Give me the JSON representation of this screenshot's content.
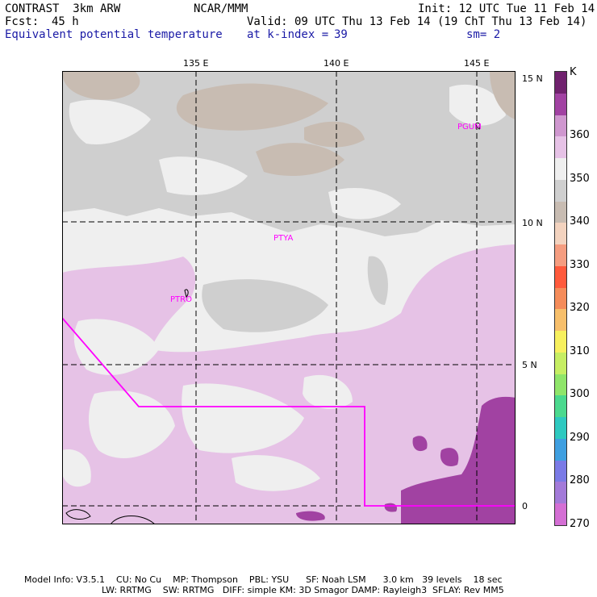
{
  "header": {
    "model": "CONTRAST  3km ARW",
    "org": "NCAR/MMM",
    "init": "Init: 12 UTC Tue 11 Feb 14",
    "fcst_label": "Fcst:",
    "fcst_value": "45 h",
    "valid": "Valid: 09 UTC Thu 13 Feb 14 (19 ChT Thu 13 Feb 14)",
    "field": "Equivalent potential temperature",
    "level": "at k-index =",
    "level_value": "39",
    "smoothing": "sm= 2"
  },
  "map": {
    "lon_labels": [
      "135 E",
      "140 E",
      "145 E"
    ],
    "lat_labels": [
      "15 N",
      "10 N",
      "5 N",
      "0"
    ],
    "stations": [
      "PGUM",
      "PTYA",
      "PTRO"
    ]
  },
  "colorbar": {
    "unit": "K",
    "labels": [
      "360",
      "350",
      "340",
      "330",
      "320",
      "310",
      "300",
      "290",
      "280",
      "270"
    ],
    "colors": [
      "#70226e",
      "#a142a2",
      "#cf97cf",
      "#e6c2e6",
      "#efefef",
      "#cfcfcf",
      "#c8bcb2",
      "#f3d3bf",
      "#f59d80",
      "#ff5a3c",
      "#f58c5a",
      "#f7bf6b",
      "#f7f05e",
      "#c6ee63",
      "#8fe56a",
      "#4bd98e",
      "#2ec9c0",
      "#3f9fe0",
      "#7a7ae6",
      "#a37ad9",
      "#d46fd4"
    ]
  },
  "footer": {
    "line1": "Model Info: V3.5.1    CU: No Cu    MP: Thompson    PBL: YSU      SF: Noah LSM      3.0 km   39 levels    18 sec",
    "line2": "LW: RRTMG    SW: RRTMG   DIFF: simple KM: 3D Smagor DAMP: Rayleigh3  SFLAY: Rev MM5"
  }
}
